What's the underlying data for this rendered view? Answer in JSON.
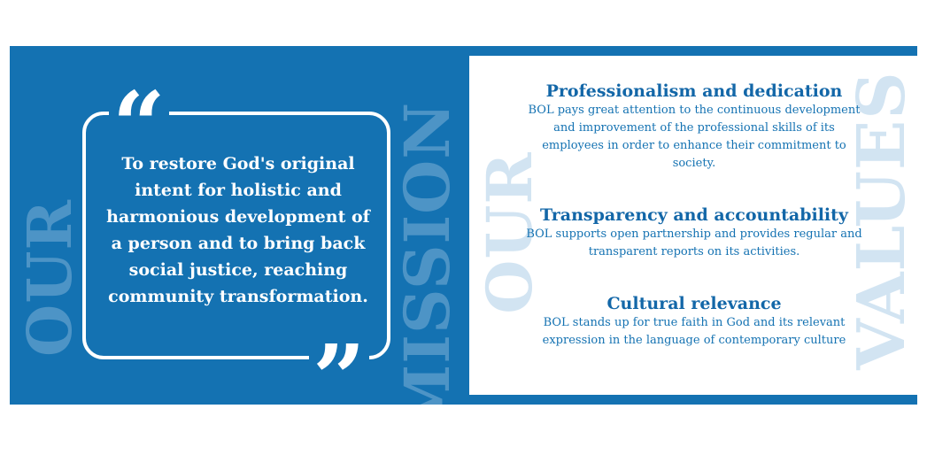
{
  "mission": {
    "label_our": "OUR",
    "label_word": "MISSION",
    "quote_open": "“",
    "quote_close": "”",
    "text": "To restore God's original intent for holistic and harmonious development of a person and to bring back social justice, reaching community transformation."
  },
  "values": {
    "label_our": "OUR",
    "label_word": "VALUES",
    "items": [
      {
        "title": "Professionalism and dedication",
        "description": "BOL pays great attention to the continuous development and improvement of the professional skills of its employees in order to enhance their commitment to society."
      },
      {
        "title": "Transparency and accountability",
        "description": "BOL supports open partnership and provides regular and transparent reports on its activities."
      },
      {
        "title": "Cultural relevance",
        "description": "BOL stands up for true faith in God and its relevant expression in the language of contemporary culture"
      }
    ]
  },
  "colors": {
    "banner_blue": "#1472b2",
    "watermark_dark": "#4d94c6",
    "watermark_light": "#d2e4f2",
    "heading_blue": "#1367a8"
  }
}
